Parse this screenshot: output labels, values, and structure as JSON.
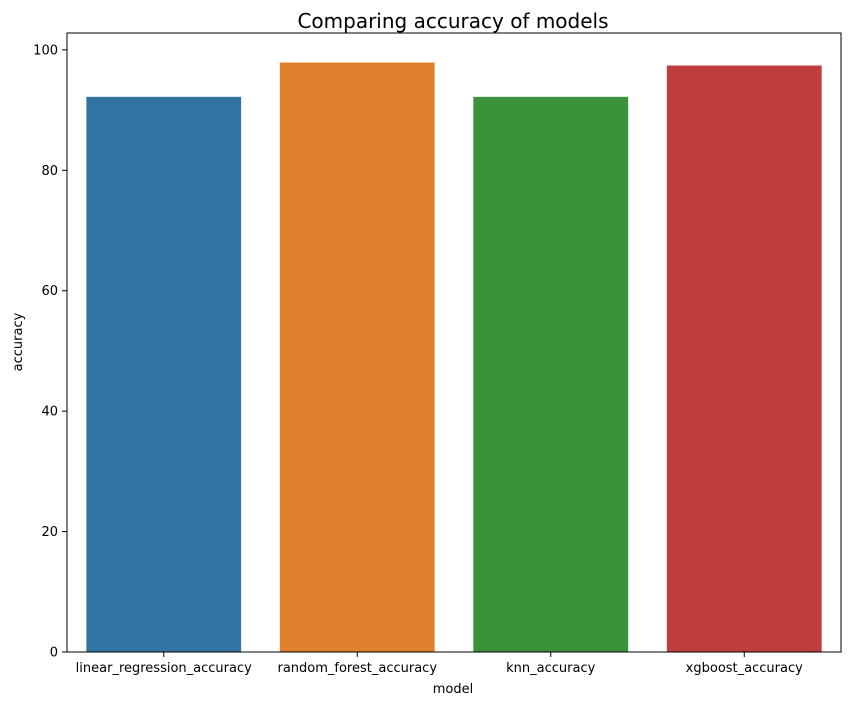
{
  "chart_data": {
    "type": "bar",
    "title": "Comparing accuracy of models",
    "xlabel": "model",
    "ylabel": "accuracy",
    "categories": [
      "linear_regression_accuracy",
      "random_forest_accuracy",
      "knn_accuracy",
      "xgboost_accuracy"
    ],
    "values": [
      92.2,
      97.9,
      92.2,
      97.4
    ],
    "colors": [
      "#3274a1",
      "#e1812c",
      "#3a923a",
      "#c03d3e"
    ],
    "ylim": [
      0,
      102.8
    ],
    "yticks": [
      0,
      20,
      40,
      60,
      80,
      100
    ],
    "grid": false,
    "legend": "none"
  }
}
